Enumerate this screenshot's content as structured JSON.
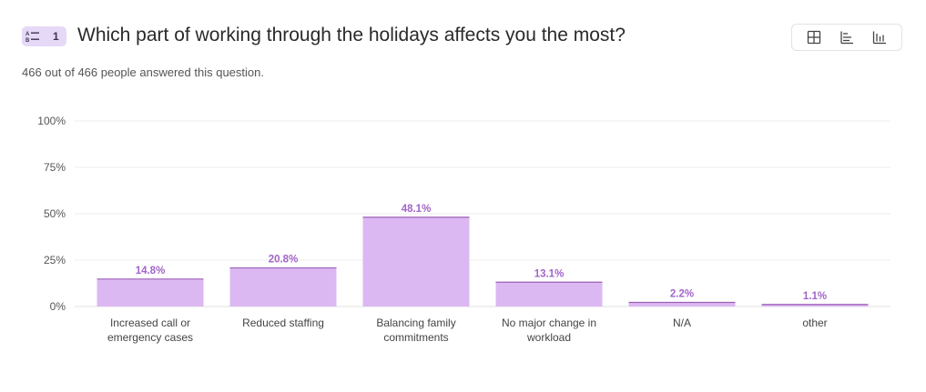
{
  "question": {
    "number": "1",
    "title": "Which part of working through the holidays affects you the most?",
    "response_summary": "466 out of 466 people answered this question."
  },
  "view_switch": {
    "options": [
      "table-view",
      "horizontal-bar-view",
      "vertical-bar-view"
    ],
    "selected": "vertical-bar-view"
  },
  "colors": {
    "bar_fill": "#dcb8f2",
    "bar_top": "#9b5fb5",
    "value_label": "#a165c9",
    "badge_bg": "#e6d9f7"
  },
  "chart_data": {
    "type": "bar",
    "categories": [
      [
        "Increased call or",
        "emergency cases"
      ],
      [
        "Reduced staffing"
      ],
      [
        "Balancing family",
        "commitments"
      ],
      [
        "No major change in",
        "workload"
      ],
      [
        "N/A"
      ],
      [
        "other"
      ]
    ],
    "values": [
      14.8,
      20.8,
      48.1,
      13.1,
      2.2,
      1.1
    ],
    "value_labels": [
      "14.8%",
      "20.8%",
      "48.1%",
      "13.1%",
      "2.2%",
      "1.1%"
    ],
    "yticks": [
      0,
      25,
      50,
      75,
      100
    ],
    "ytick_labels": [
      "0%",
      "25%",
      "50%",
      "75%",
      "100%"
    ],
    "ylim": [
      0,
      100
    ],
    "grid": true,
    "title": "",
    "xlabel": "",
    "ylabel": ""
  }
}
